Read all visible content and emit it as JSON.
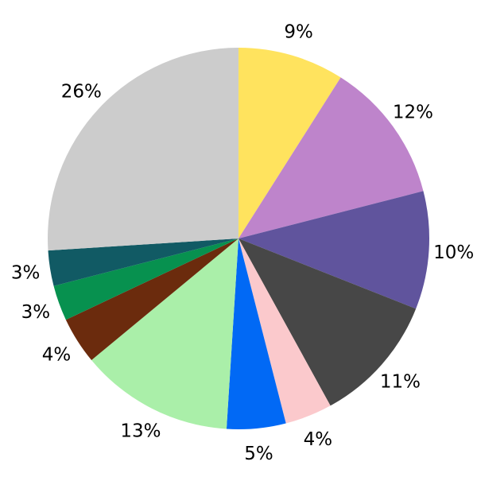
{
  "page": {
    "background_color": "#ffffff"
  },
  "chart_data": {
    "type": "pie",
    "title": "",
    "legend": "none",
    "start_angle_deg": 90,
    "direction": "clockwise",
    "label_distance": 1.13,
    "label_color": "#000000",
    "categories": [
      "9%",
      "12%",
      "10%",
      "11%",
      "4%",
      "5%",
      "13%",
      "4%",
      "3%",
      "3%",
      "26%"
    ],
    "values": [
      9,
      12,
      10,
      11,
      4,
      5,
      13,
      4,
      3,
      3,
      26
    ],
    "slices": [
      {
        "label": "9%",
        "value": 9,
        "color": "#FFE35E"
      },
      {
        "label": "12%",
        "value": 12,
        "color": "#BE84CB"
      },
      {
        "label": "10%",
        "value": 10,
        "color": "#60549D"
      },
      {
        "label": "11%",
        "value": 11,
        "color": "#474747"
      },
      {
        "label": "4%",
        "value": 4,
        "color": "#FBC9CC"
      },
      {
        "label": "5%",
        "value": 5,
        "color": "#0169F5"
      },
      {
        "label": "13%",
        "value": 13,
        "color": "#AAEFA9"
      },
      {
        "label": "4%",
        "value": 4,
        "color": "#6B2B0D"
      },
      {
        "label": "3%",
        "value": 3,
        "color": "#07914F"
      },
      {
        "label": "3%",
        "value": 3,
        "color": "#115A64"
      },
      {
        "label": "26%",
        "value": 26,
        "color": "#CCCCCC"
      }
    ]
  }
}
